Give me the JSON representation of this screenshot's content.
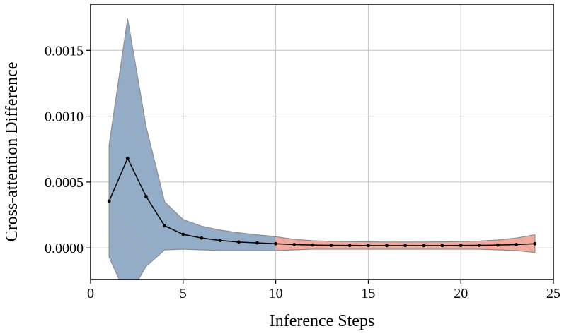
{
  "chart_data": {
    "type": "line",
    "title": "",
    "xlabel": "Inference Steps",
    "ylabel": "Cross-attention Difference",
    "xlim": [
      0,
      25
    ],
    "ylim": [
      -0.00024,
      0.00185
    ],
    "x_ticks": [
      0,
      5,
      10,
      15,
      20,
      25
    ],
    "x_tick_labels": [
      "0",
      "5",
      "10",
      "15",
      "20",
      "25"
    ],
    "y_ticks": [
      0.0,
      0.0005,
      0.001,
      0.0015
    ],
    "y_tick_labels": [
      "0.0000",
      "0.0005",
      "0.0010",
      "0.0015"
    ],
    "grid": true,
    "legend": "none",
    "split_at": 10,
    "colors": {
      "line": "#000000",
      "band_early": "#93adc8",
      "band_late": "#f4aa9c",
      "band_edge": "#8c8c8c",
      "hatch": "#a8a8a8",
      "grid": "#c4c4c4"
    },
    "series": [
      {
        "x": [
          1,
          2,
          3,
          4,
          5,
          6,
          7,
          8,
          9,
          10,
          11,
          12,
          13,
          14,
          15,
          16,
          17,
          18,
          19,
          20,
          21,
          22,
          23,
          24
        ],
        "values": [
          0.000355,
          0.00068,
          0.00039,
          0.000168,
          0.000103,
          7.5e-05,
          5.7e-05,
          4.5e-05,
          3.8e-05,
          3.2e-05,
          2.5e-05,
          2.2e-05,
          2e-05,
          1.9e-05,
          1.8e-05,
          1.8e-05,
          1.8e-05,
          1.8e-05,
          1.8e-05,
          1.9e-05,
          2e-05,
          2.2e-05,
          2.5e-05,
          3.2e-05
        ],
        "lower": [
          -7e-05,
          -0.00038,
          -0.00014,
          -1.5e-05,
          -1e-05,
          -1.5e-05,
          -2e-05,
          -2e-05,
          -2e-05,
          -2e-05,
          -1.5e-05,
          -1e-05,
          -1e-05,
          -1e-05,
          -1e-05,
          -1e-05,
          -1e-05,
          -1e-05,
          -1e-05,
          -1e-05,
          -1e-05,
          -1.5e-05,
          -2e-05,
          -3.5e-05
        ],
        "upper": [
          0.00078,
          0.00174,
          0.00092,
          0.00035,
          0.000215,
          0.000165,
          0.000135,
          0.000115,
          0.0001,
          8.5e-05,
          6.5e-05,
          5.5e-05,
          5e-05,
          4.8e-05,
          4.6e-05,
          4.5e-05,
          4.5e-05,
          4.5e-05,
          4.6e-05,
          4.8e-05,
          5.2e-05,
          6e-05,
          7.5e-05,
          0.0001
        ]
      }
    ]
  }
}
